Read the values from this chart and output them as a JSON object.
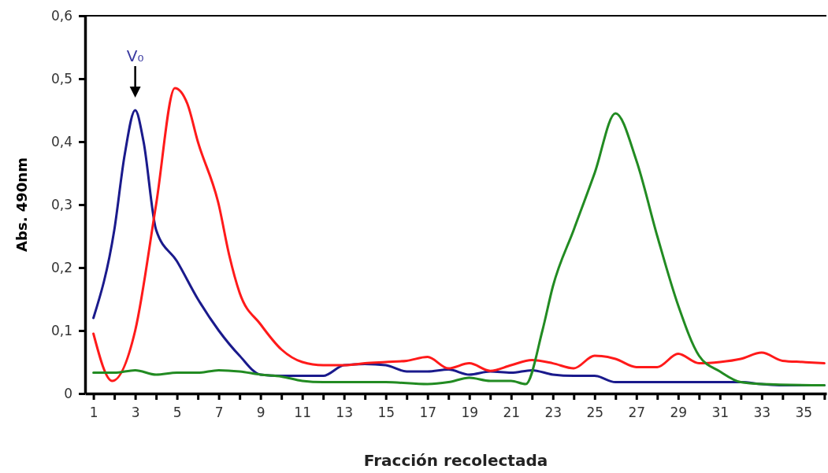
{
  "chart_data": {
    "type": "line",
    "xlabel": "Fracción recolectada",
    "ylabel": "Abs. 490nm",
    "xlim": [
      0.6,
      36.1
    ],
    "xticks": [
      1,
      {
        "value": 2,
        "label": null
      },
      3,
      {
        "value": 4,
        "label": null
      },
      5,
      {
        "value": 6,
        "label": null
      },
      7,
      {
        "value": 8,
        "label": null
      },
      9,
      {
        "value": 10,
        "label": null
      },
      11,
      {
        "value": 12,
        "label": null
      },
      13,
      {
        "value": 14,
        "label": null
      },
      15,
      {
        "value": 16,
        "label": null
      },
      17,
      {
        "value": 18,
        "label": null
      },
      19,
      {
        "value": 20,
        "label": null
      },
      21,
      {
        "value": 22,
        "label": null
      },
      23,
      {
        "value": 24,
        "label": null
      },
      25,
      {
        "value": 26,
        "label": null
      },
      27,
      {
        "value": 28,
        "label": null
      },
      29,
      {
        "value": 30,
        "label": null
      },
      31,
      {
        "value": 32,
        "label": null
      },
      33,
      {
        "value": 34,
        "label": null
      },
      35,
      {
        "value": 36,
        "label": null
      }
    ],
    "ylim": [
      0,
      0.6
    ],
    "yticks": [
      0,
      {
        "value": 0.1,
        "label": "0,1"
      },
      {
        "value": 0.2,
        "label": "0,2"
      },
      {
        "value": 0.3,
        "label": "0,3"
      },
      {
        "value": 0.4,
        "label": "0,4"
      },
      {
        "value": 0.5,
        "label": "0,5"
      },
      {
        "value": 0.6,
        "label": "0,6"
      }
    ],
    "marker": "none",
    "line_style": "solid",
    "annotations": [
      {
        "text": "V₀",
        "x": 3,
        "y": 0.45
      }
    ],
    "series": [
      {
        "color": "#1a1a8c",
        "x": [
          1,
          2,
          2.5,
          3,
          3.4,
          4,
          5,
          6,
          7,
          8,
          9,
          10,
          11,
          12,
          13,
          14,
          15,
          16,
          17,
          18,
          19,
          20,
          21,
          22,
          23,
          24,
          25,
          26,
          28,
          30,
          32,
          33,
          34,
          36
        ],
        "values": [
          0.12,
          0.26,
          0.38,
          0.45,
          0.4,
          0.26,
          0.21,
          0.15,
          0.1,
          0.06,
          0.03,
          0.028,
          0.028,
          0.028,
          0.045,
          0.047,
          0.045,
          0.035,
          0.035,
          0.038,
          0.03,
          0.035,
          0.033,
          0.037,
          0.03,
          0.028,
          0.028,
          0.018,
          0.018,
          0.018,
          0.018,
          0.015,
          0.013,
          0.013
        ]
      },
      {
        "color": "#ff1a1a",
        "x": [
          1,
          1.9,
          3,
          4,
          4.9,
          5.5,
          6,
          7,
          7.5,
          8,
          9,
          10,
          11,
          12,
          13,
          14,
          15,
          16,
          17,
          18,
          19,
          20,
          21,
          22,
          23,
          24,
          25,
          26,
          27,
          28,
          29,
          30,
          31,
          32,
          33,
          34,
          35,
          36
        ],
        "values": [
          0.095,
          0.02,
          0.1,
          0.3,
          0.485,
          0.46,
          0.4,
          0.3,
          0.22,
          0.16,
          0.11,
          0.07,
          0.05,
          0.045,
          0.045,
          0.048,
          0.05,
          0.052,
          0.058,
          0.04,
          0.048,
          0.036,
          0.045,
          0.053,
          0.048,
          0.04,
          0.06,
          0.055,
          0.042,
          0.042,
          0.063,
          0.048,
          0.05,
          0.055,
          0.065,
          0.052,
          0.05,
          0.048
        ]
      },
      {
        "color": "#228b22",
        "x": [
          1,
          2,
          3,
          4,
          5,
          6,
          7,
          8,
          9,
          10,
          11,
          12,
          15,
          17,
          18,
          19,
          20,
          21,
          21.7,
          22.5,
          23,
          24,
          25,
          26,
          27,
          28,
          29,
          30,
          31,
          32,
          33,
          36
        ],
        "values": [
          0.033,
          0.033,
          0.037,
          0.03,
          0.033,
          0.033,
          0.037,
          0.035,
          0.03,
          0.027,
          0.02,
          0.018,
          0.018,
          0.015,
          0.018,
          0.025,
          0.02,
          0.02,
          0.015,
          0.1,
          0.17,
          0.26,
          0.35,
          0.445,
          0.37,
          0.25,
          0.14,
          0.06,
          0.035,
          0.018,
          0.015,
          0.013
        ]
      }
    ]
  }
}
